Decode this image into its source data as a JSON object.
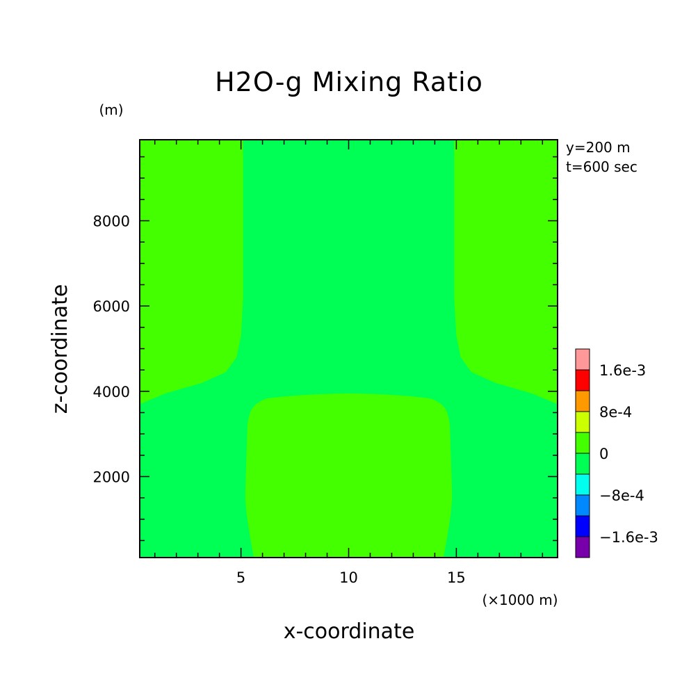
{
  "chart_data": {
    "type": "heatmap",
    "title": "H2O-g Mixing Ratio",
    "xlabel": "x-coordinate",
    "ylabel": "z-coordinate",
    "x_unit": "(×1000 m)",
    "y_unit": "(m)",
    "annotations": [
      "y=200 m",
      "t=600 sec"
    ],
    "xlim": [
      0.3,
      19.7
    ],
    "ylim": [
      100,
      9900
    ],
    "xticks": [
      5,
      10,
      15
    ],
    "yticks": [
      2000,
      4000,
      6000,
      8000
    ],
    "ytick_labels": [
      "2000",
      "4000",
      "6000",
      "8000"
    ],
    "background_value": "0 to -4e-4",
    "regions": [
      {
        "name": "upper-left",
        "level": "0 to 4e-4",
        "x": [
          0.3,
          5.1
        ],
        "z": [
          3700,
          9900
        ]
      },
      {
        "name": "upper-right",
        "level": "0 to 4e-4",
        "x": [
          14.9,
          19.7
        ],
        "z": [
          3700,
          9900
        ]
      },
      {
        "name": "lower-center",
        "level": "0 to 4e-4",
        "x": [
          5.2,
          14.8
        ],
        "z": [
          100,
          3950
        ]
      }
    ],
    "colorbar": {
      "levels": [
        {
          "color": "#ff9999",
          "range": "1.6e-3 to 2.0e-3"
        },
        {
          "color": "#ff0000",
          "range": "1.2e-3 to 1.6e-3"
        },
        {
          "color": "#ff9900",
          "range": "8e-4 to 1.2e-3"
        },
        {
          "color": "#ccff00",
          "range": "4e-4 to 8e-4"
        },
        {
          "color": "#44ff00",
          "range": "0 to 4e-4"
        },
        {
          "color": "#00ff55",
          "range": "-4e-4 to 0"
        },
        {
          "color": "#00ffee",
          "range": "-8e-4 to -4e-4"
        },
        {
          "color": "#0088ff",
          "range": "-1.2e-3 to -8e-4"
        },
        {
          "color": "#0000ff",
          "range": "-1.6e-3 to -1.2e-3"
        },
        {
          "color": "#7700aa",
          "range": "-2.0e-3 to -1.6e-3"
        }
      ],
      "labels": [
        "1.6e-3",
        "8e-4",
        "0",
        "−8e-4",
        "−1.6e-3"
      ]
    },
    "colors": {
      "background": "#00ff55",
      "region": "#44ff00"
    }
  }
}
